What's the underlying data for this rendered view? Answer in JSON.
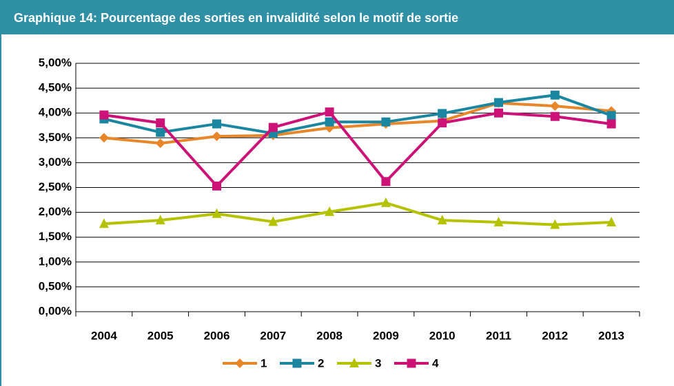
{
  "chart_data": {
    "type": "line",
    "title": "Graphique 14: Pourcentage des sorties en invalidité selon le motif de sortie",
    "categories": [
      "2004",
      "2005",
      "2006",
      "2007",
      "2008",
      "2009",
      "2010",
      "2011",
      "2012",
      "2013"
    ],
    "series": [
      {
        "name": "1",
        "color": "#e8862a",
        "marker": "diamond",
        "values": [
          3.5,
          3.39,
          3.53,
          3.55,
          3.7,
          3.78,
          3.84,
          4.2,
          4.14,
          4.04
        ]
      },
      {
        "name": "2",
        "color": "#1a86a0",
        "marker": "square",
        "values": [
          3.88,
          3.61,
          3.78,
          3.59,
          3.82,
          3.82,
          3.99,
          4.21,
          4.36,
          3.95
        ]
      },
      {
        "name": "3",
        "color": "#b5c200",
        "marker": "triangle",
        "values": [
          1.77,
          1.84,
          1.97,
          1.81,
          2.01,
          2.19,
          1.84,
          1.8,
          1.75,
          1.8
        ]
      },
      {
        "name": "4",
        "color": "#cc1177",
        "marker": "square",
        "values": [
          3.96,
          3.8,
          2.53,
          3.71,
          4.02,
          2.62,
          3.8,
          4.0,
          3.93,
          3.78
        ]
      }
    ],
    "ylim": [
      0,
      5
    ],
    "yticks": [
      {
        "value": 0,
        "label": "0,00%"
      },
      {
        "value": 0.5,
        "label": "0,50%"
      },
      {
        "value": 1,
        "label": "1,00%"
      },
      {
        "value": 1.5,
        "label": "1,50%"
      },
      {
        "value": 2,
        "label": "2,00%"
      },
      {
        "value": 2.5,
        "label": "2,50%"
      },
      {
        "value": 3,
        "label": "3,00%"
      },
      {
        "value": 3.5,
        "label": "3,50%"
      },
      {
        "value": 4,
        "label": "4,00%"
      },
      {
        "value": 4.5,
        "label": "4,50%"
      },
      {
        "value": 5,
        "label": "5,00%"
      }
    ],
    "grid": true,
    "legend": "bottom"
  }
}
